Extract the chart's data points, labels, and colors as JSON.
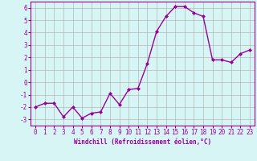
{
  "x": [
    0,
    1,
    2,
    3,
    4,
    5,
    6,
    7,
    8,
    9,
    10,
    11,
    12,
    13,
    14,
    15,
    16,
    17,
    18,
    19,
    20,
    21,
    22,
    23
  ],
  "y": [
    -2.0,
    -1.7,
    -1.7,
    -2.8,
    -2.0,
    -2.9,
    -2.5,
    -2.4,
    -0.9,
    -1.8,
    -0.6,
    -0.5,
    1.5,
    4.1,
    5.3,
    6.1,
    6.1,
    5.6,
    5.3,
    1.8,
    1.8,
    1.6,
    2.3,
    2.6
  ],
  "line_color": "#990099",
  "marker": "D",
  "markersize": 2.0,
  "linewidth": 1.0,
  "xlabel": "Windchill (Refroidissement éolien,°C)",
  "xlim": [
    -0.5,
    23.5
  ],
  "ylim": [
    -3.5,
    6.5
  ],
  "yticks": [
    -3,
    -2,
    -1,
    0,
    1,
    2,
    3,
    4,
    5,
    6
  ],
  "xticks": [
    0,
    1,
    2,
    3,
    4,
    5,
    6,
    7,
    8,
    9,
    10,
    11,
    12,
    13,
    14,
    15,
    16,
    17,
    18,
    19,
    20,
    21,
    22,
    23
  ],
  "bg_color": "#d8f5f5",
  "grid_color": "#aaaaaa",
  "tick_color": "#990099",
  "label_color": "#990099",
  "tick_fontsize": 5.5,
  "xlabel_fontsize": 5.5
}
